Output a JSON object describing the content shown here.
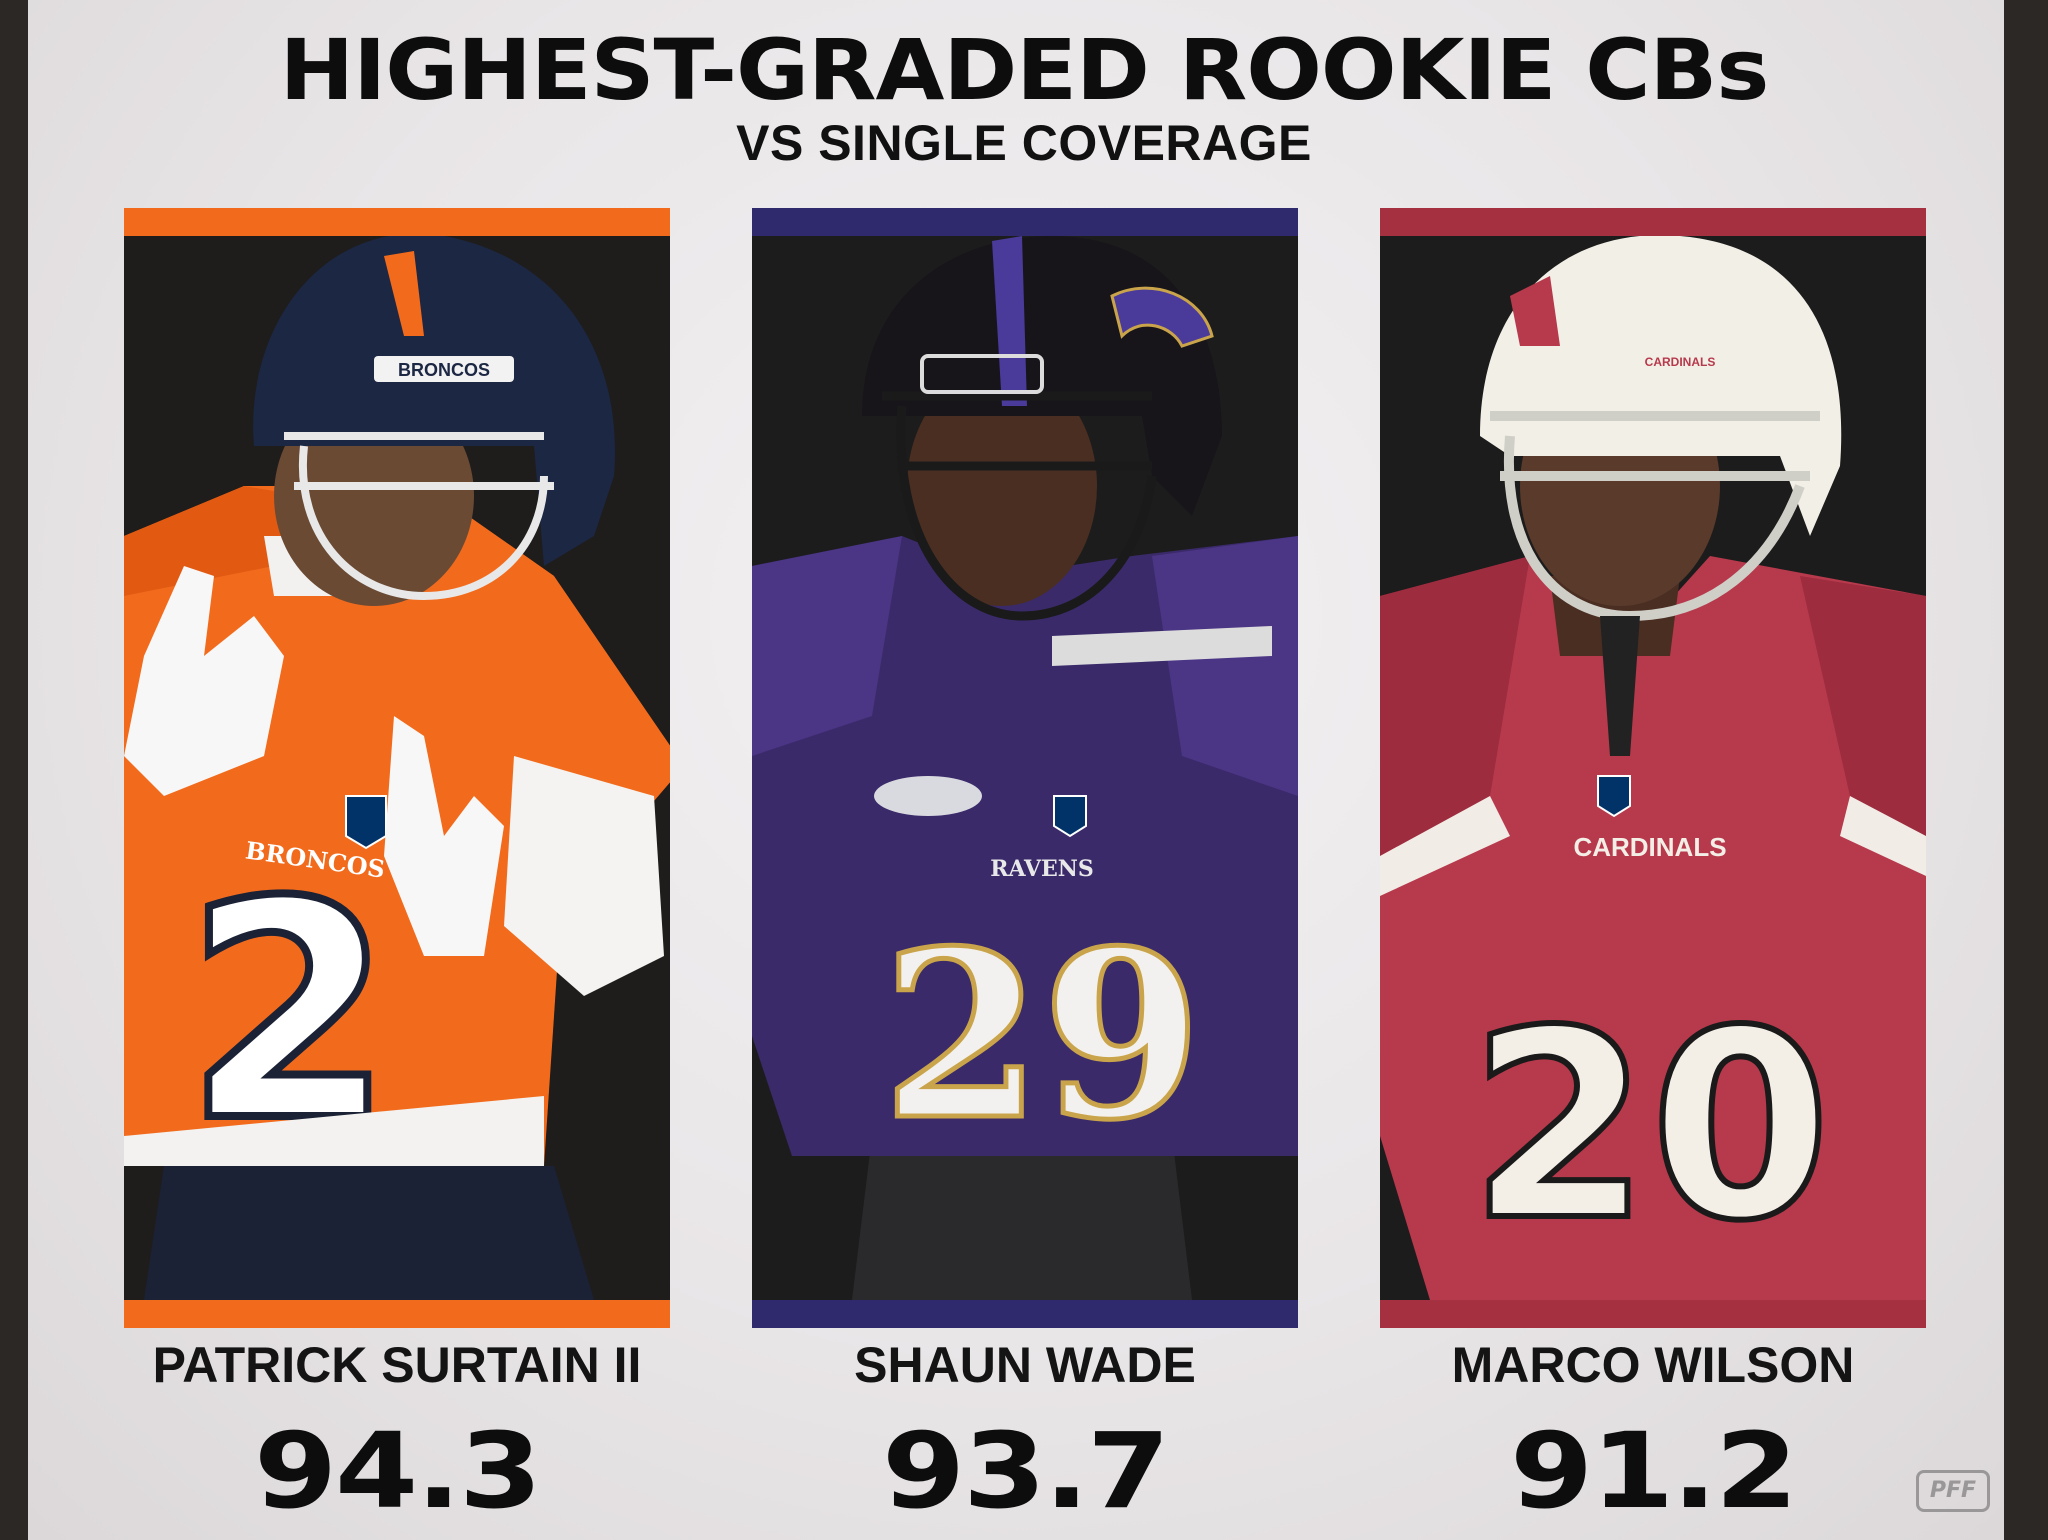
{
  "title": "HIGHEST-GRADED ROOKIE CBs",
  "subtitle": "VS SINGLE COVERAGE",
  "logo_text": "PFF",
  "players": [
    {
      "name": "PATRICK SURTAIN II",
      "grade": "94.3",
      "team_color": "#f26b1d",
      "jersey_number": "2",
      "jersey_team": "BRONCOS",
      "helmet_text": "BRONCOS"
    },
    {
      "name": "SHAUN WADE",
      "grade": "93.7",
      "team_color": "#2f2a6e",
      "jersey_number": "29",
      "jersey_team": "RAVENS",
      "helmet_text": ""
    },
    {
      "name": "MARCO WILSON",
      "grade": "91.2",
      "team_color": "#a5303f",
      "jersey_number": "20",
      "jersey_team": "CARDINALS",
      "helmet_text": "CARDINALS"
    }
  ]
}
